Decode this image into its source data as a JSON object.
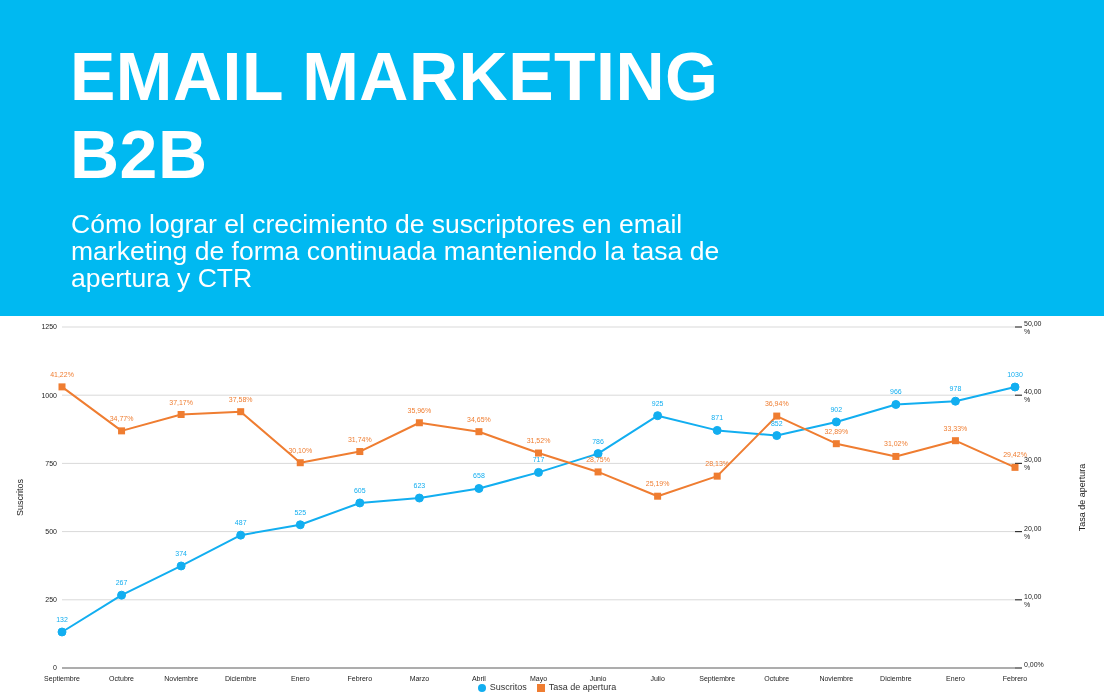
{
  "chart_data": {
    "type": "line",
    "title": "EMAIL MARKETING B2B",
    "subtitle": "Cómo lograr el crecimiento de suscriptores en email marketing de forma continuada manteniendo la tasa de apertura y CTR",
    "ylabel": "Suscritos",
    "y2label": "Tasa de apertura",
    "categories": [
      "Septiembre",
      "Octubre",
      "Noviembre",
      "Diciembre",
      "Enero",
      "Febrero",
      "Marzo",
      "Abril",
      "Mayo",
      "Junio",
      "Julio",
      "Septiembre",
      "Octubre",
      "Noviembre",
      "Diciembre",
      "Enero",
      "Febrero"
    ],
    "series": [
      {
        "name": "Suscritos",
        "color": "#12aef0",
        "marker": "circle",
        "values": [
          132,
          267,
          374,
          487,
          525,
          605,
          623,
          658,
          717,
          786,
          925,
          871,
          852,
          902,
          966,
          978,
          1030
        ],
        "value_labels": [
          "132",
          "267",
          "374",
          "487",
          "525",
          "605",
          "623",
          "658",
          "717",
          "786",
          "925",
          "871",
          "852",
          "902",
          "966",
          "978",
          "1030"
        ]
      },
      {
        "name": "Tasa de apertura",
        "color": "#ef7d31",
        "marker": "square",
        "axis": "y2",
        "values": [
          41.22,
          34.77,
          37.17,
          37.58,
          30.1,
          31.74,
          35.96,
          34.65,
          31.52,
          28.75,
          25.19,
          28.13,
          36.94,
          32.89,
          31.02,
          33.33,
          29.42
        ],
        "value_labels": [
          "41,22%",
          "34,77%",
          "37,17%",
          "37,58%",
          "30,10%",
          "31,74%",
          "35,96%",
          "34,65%",
          "31,52%",
          "28,75%",
          "25,19%",
          "28,13%",
          "36,94%",
          "32,89%",
          "31,02%",
          "33,33%",
          "29,42%"
        ]
      }
    ],
    "ylim": [
      0,
      1250
    ],
    "yticks": [
      0,
      250,
      500,
      750,
      1000,
      1250
    ],
    "y2lim": [
      0,
      50
    ],
    "y2ticks": [
      {
        "value": 0,
        "label": "0,00%"
      },
      {
        "value": 10,
        "label": "10,00 %"
      },
      {
        "value": 20,
        "label": "20,00 %"
      },
      {
        "value": 30,
        "label": "30,00 %"
      },
      {
        "value": 40,
        "label": "40,00 %"
      },
      {
        "value": 50,
        "label": "50,00 %"
      }
    ],
    "grid": "y",
    "legend": "bottom"
  }
}
